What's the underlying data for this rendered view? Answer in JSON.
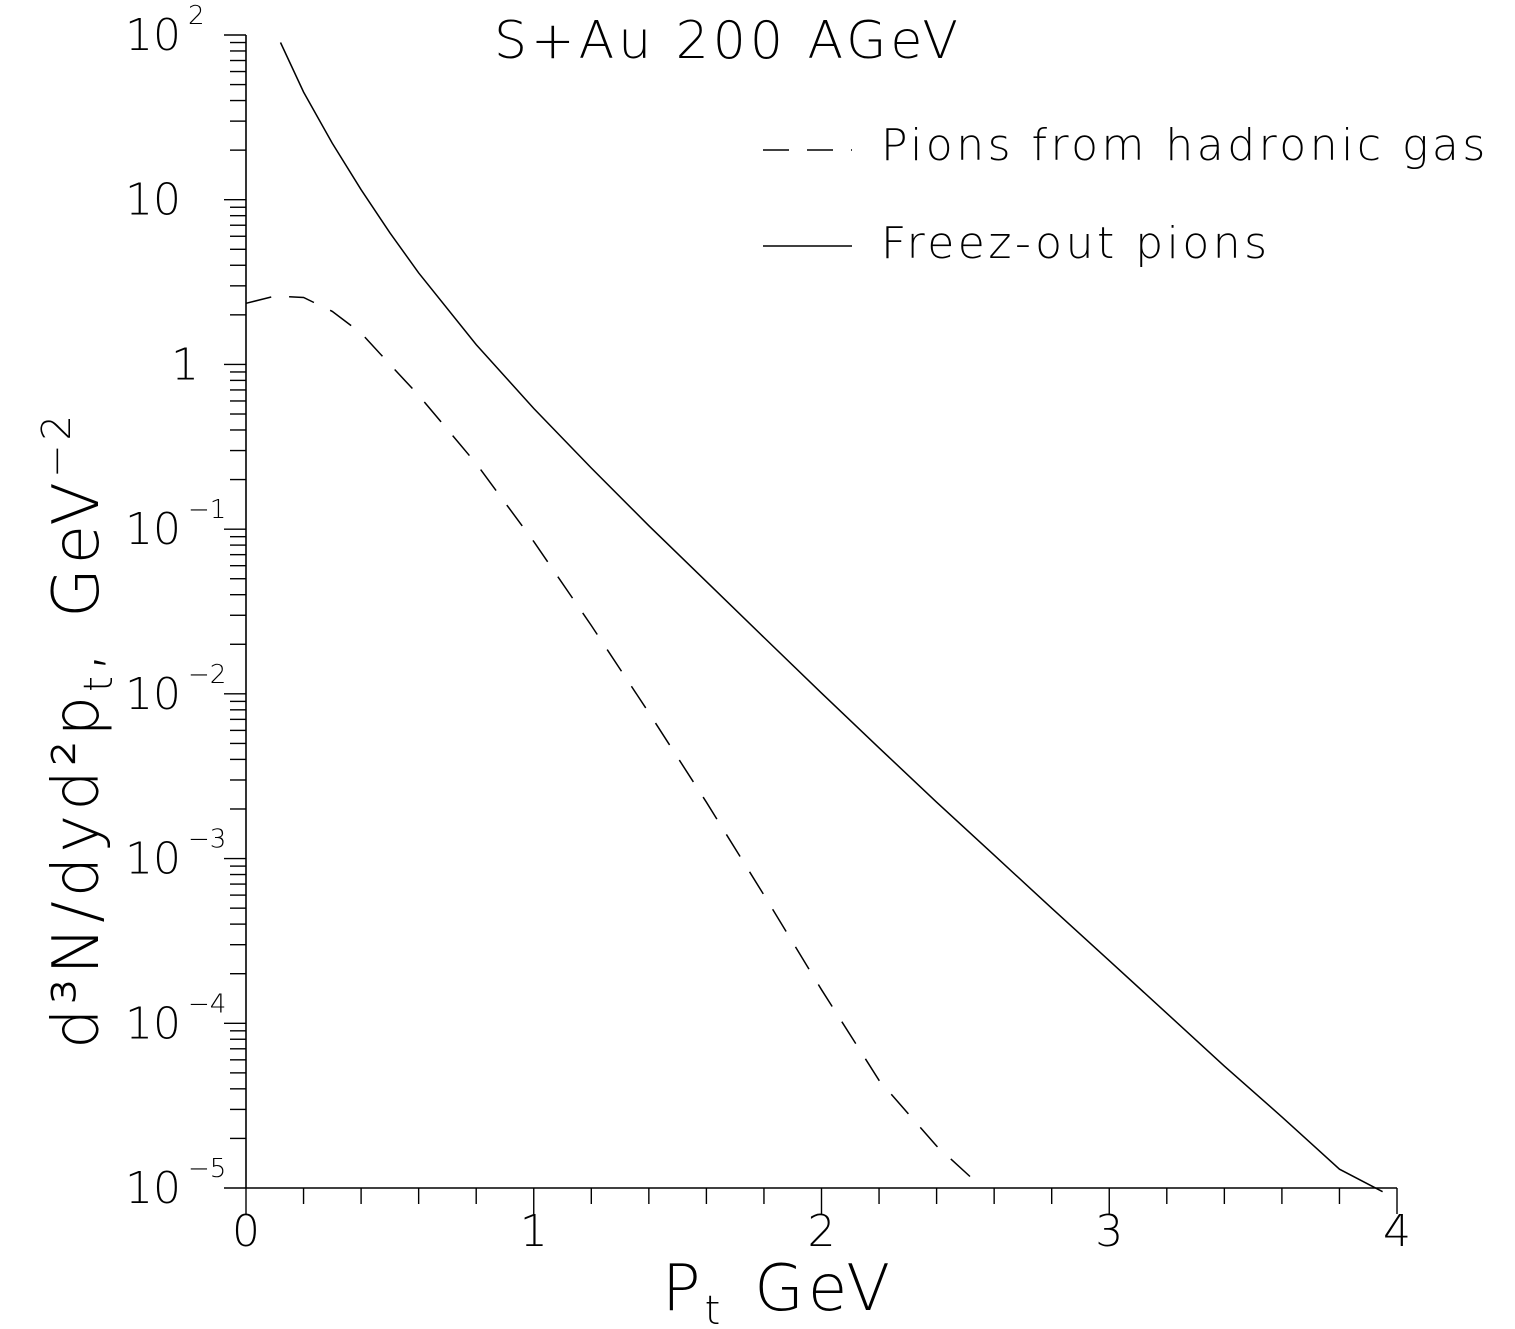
{
  "chart_data": {
    "type": "line",
    "title": "S+Au 200 AGeV",
    "xlabel": {
      "main": "P",
      "sub": "t",
      "unit": "GeV"
    },
    "ylabel": {
      "text": "d³N/dyd²p",
      "sub": "t",
      "unit": "GeV",
      "unit_exp": "−2"
    },
    "xlim": [
      0,
      4
    ],
    "ylim": [
      1e-05,
      100
    ],
    "yscale": "log",
    "grid": false,
    "legend_position": "top-right",
    "x_ticks": [
      {
        "value": 0,
        "label": "0"
      },
      {
        "value": 1,
        "label": "1"
      },
      {
        "value": 2,
        "label": "2"
      },
      {
        "value": 3,
        "label": "3"
      },
      {
        "value": 4,
        "label": "4"
      }
    ],
    "y_ticks": [
      {
        "value": 100,
        "base": "10",
        "exp": "2"
      },
      {
        "value": 10,
        "base": "10",
        "exp": ""
      },
      {
        "value": 1,
        "base": "1",
        "exp": ""
      },
      {
        "value": 0.1,
        "base": "10",
        "exp": "−1"
      },
      {
        "value": 0.01,
        "base": "10",
        "exp": "−2"
      },
      {
        "value": 0.001,
        "base": "10",
        "exp": "−3"
      },
      {
        "value": 0.0001,
        "base": "10",
        "exp": "−4"
      },
      {
        "value": 1e-05,
        "base": "10",
        "exp": "−5"
      }
    ],
    "series": [
      {
        "name": "Pions from hadronic gas",
        "style": "dashed",
        "color": "#000000",
        "x": [
          0.0,
          0.1,
          0.2,
          0.3,
          0.4,
          0.5,
          0.6,
          0.8,
          1.0,
          1.2,
          1.4,
          1.6,
          1.8,
          2.0,
          2.2,
          2.4,
          2.56
        ],
        "y": [
          2.35,
          2.6,
          2.55,
          2.1,
          1.55,
          1.0,
          0.65,
          0.25,
          0.084,
          0.026,
          0.0077,
          0.0022,
          0.0006,
          0.00016,
          4.5e-05,
          1.8e-05,
          1e-05
        ]
      },
      {
        "name": "Freez-out pions",
        "style": "solid",
        "color": "#000000",
        "x": [
          0.12,
          0.2,
          0.3,
          0.4,
          0.5,
          0.6,
          0.8,
          1.0,
          1.2,
          1.4,
          1.6,
          1.8,
          2.0,
          2.2,
          2.4,
          2.6,
          2.8,
          3.0,
          3.2,
          3.4,
          3.6,
          3.8,
          3.95
        ],
        "y": [
          90,
          45,
          22,
          11.5,
          6.3,
          3.6,
          1.32,
          0.54,
          0.235,
          0.105,
          0.048,
          0.022,
          0.0101,
          0.0047,
          0.0022,
          0.00105,
          0.0005,
          0.00024,
          0.000115,
          5.5e-05,
          2.7e-05,
          1.3e-05,
          9.5e-06
        ]
      }
    ]
  }
}
